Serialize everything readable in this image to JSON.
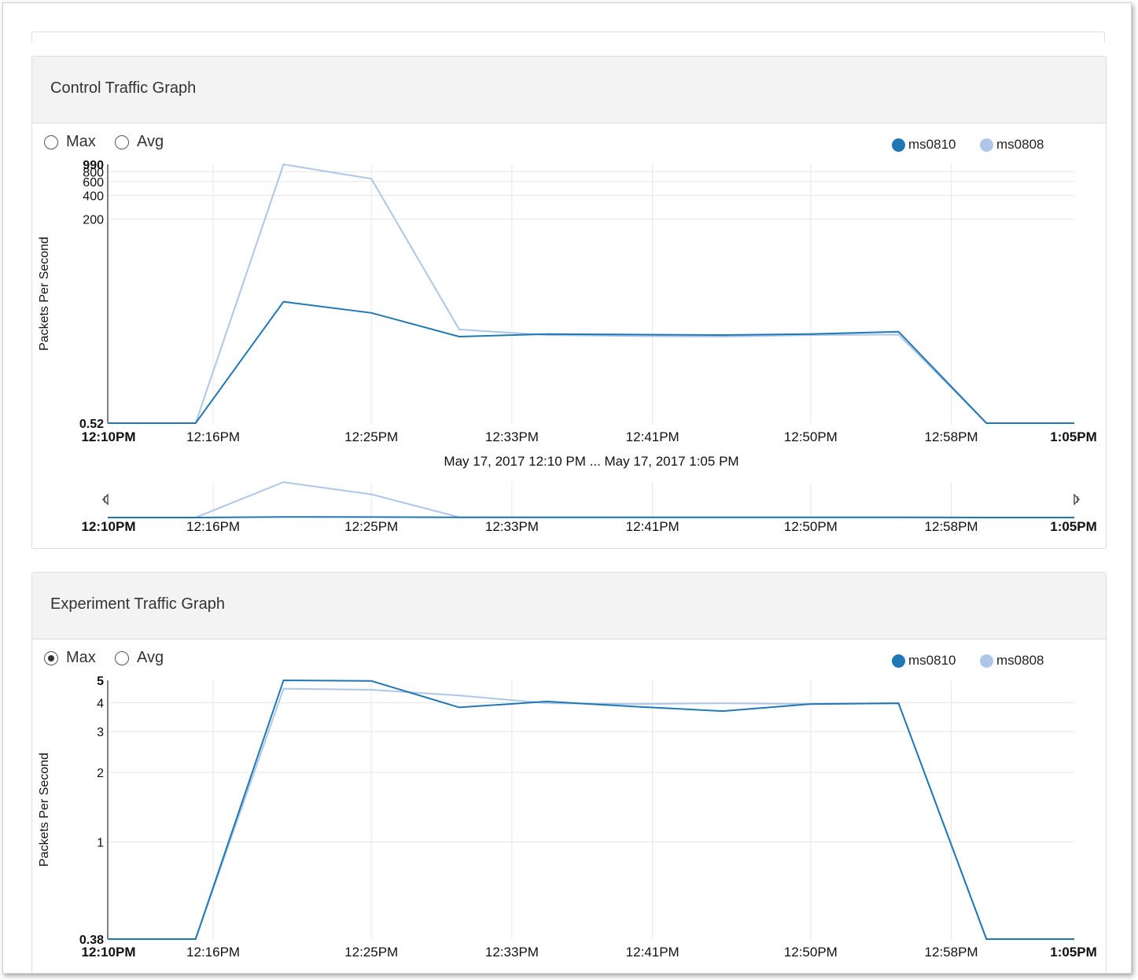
{
  "colors": {
    "series1": "#1f77b4",
    "series2": "#aec7e8",
    "grid": "#e6e6e6"
  },
  "control": {
    "title": "Control Traffic Graph",
    "radio_max": "Max",
    "radio_avg": "Avg",
    "selected": "none",
    "legend": [
      "ms0810",
      "ms0808"
    ],
    "range_label": "May 17, 2017 12:10 PM ... May 17, 2017 1:05 PM"
  },
  "experiment": {
    "title": "Experiment Traffic Graph",
    "radio_max": "Max",
    "radio_avg": "Avg",
    "selected": "max",
    "legend": [
      "ms0810",
      "ms0808"
    ]
  },
  "chart_data": [
    {
      "type": "line",
      "title": "Control Traffic Graph",
      "ylabel": "Packets Per Second",
      "yscale": "log",
      "ylim": [
        0.52,
        990
      ],
      "y_ticks": [
        "0.52",
        "200",
        "400",
        "600",
        "800",
        "990"
      ],
      "x_ticks": [
        "12:10PM",
        "12:16PM",
        "12:25PM",
        "12:33PM",
        "12:41PM",
        "12:50PM",
        "12:58PM",
        "1:05PM"
      ],
      "x": [
        "12:10",
        "12:15",
        "12:20",
        "12:25",
        "12:30",
        "12:35",
        "12:40",
        "12:45",
        "12:50",
        "12:55",
        "1:00",
        "1:05"
      ],
      "series": [
        {
          "name": "ms0810",
          "values": [
            0.52,
            0.52,
            18,
            13,
            6.5,
            7,
            6.9,
            6.8,
            7,
            7.5,
            0.52,
            0.52
          ]
        },
        {
          "name": "ms0808",
          "values": [
            0.52,
            0.52,
            990,
            650,
            8,
            6.8,
            6.6,
            6.5,
            6.8,
            6.9,
            0.52,
            0.52
          ]
        }
      ],
      "navigator": true
    },
    {
      "type": "line",
      "title": "Experiment Traffic Graph",
      "ylabel": "Packets Per Second",
      "yscale": "log",
      "ylim": [
        0.38,
        5
      ],
      "y_ticks": [
        "0.38",
        "1",
        "2",
        "3",
        "4",
        "5"
      ],
      "x_ticks": [
        "12:10PM",
        "12:16PM",
        "12:25PM",
        "12:33PM",
        "12:41PM",
        "12:50PM",
        "12:58PM",
        "1:05PM"
      ],
      "x": [
        "12:10",
        "12:15",
        "12:20",
        "12:25",
        "12:30",
        "12:35",
        "12:40",
        "12:45",
        "12:50",
        "12:55",
        "1:00",
        "1:05"
      ],
      "series": [
        {
          "name": "ms0810",
          "values": [
            0.38,
            0.38,
            5,
            4.97,
            3.82,
            4.05,
            3.85,
            3.68,
            3.95,
            3.98,
            0.38,
            0.38
          ]
        },
        {
          "name": "ms0808",
          "values": [
            0.38,
            0.38,
            4.6,
            4.55,
            4.3,
            3.98,
            3.95,
            3.98,
            3.95,
            3.98,
            0.38,
            0.38
          ]
        }
      ]
    }
  ]
}
